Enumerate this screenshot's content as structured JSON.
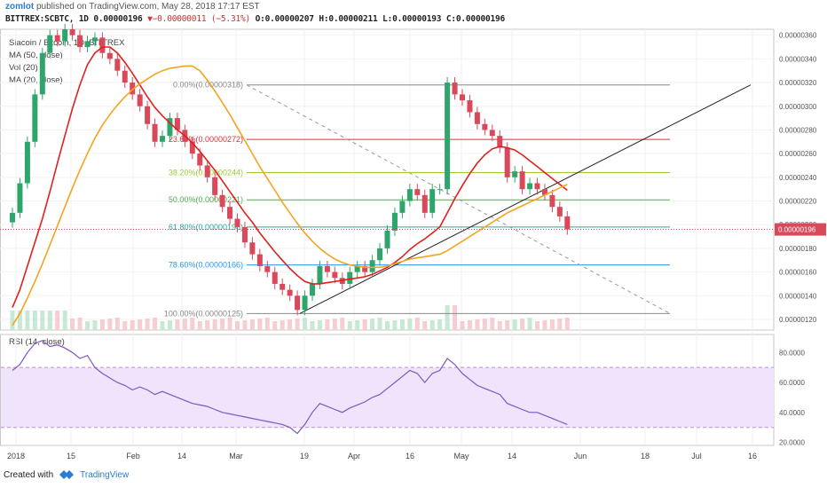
{
  "header": {
    "user": "zomlot",
    "published": "published on TradingView.com, May 28, 2018 17:17 EST",
    "symbol": "BITTREX:SCBTC, 1D",
    "price": "0.00000196",
    "change_arrow": "▼",
    "change": "−0.00000011 (−5.31%)",
    "ohlc": "O:0.00000207 H:0.00000211 L:0.00000193 C:0.00000196"
  },
  "legends": {
    "title": "Siacoin / Bitcoin, 1D, BITTREX",
    "ma50": "MA (50, close)",
    "vol": "Vol (20)",
    "ma20": "MA (20, close)",
    "rsi": "RSI (14, close)"
  },
  "footer": {
    "created_with": "Created with",
    "brand": "TradingView"
  },
  "colors": {
    "up": "#2ea66b",
    "down": "#d9495a",
    "ma20": "#e0201c",
    "ma50": "#f2a51e",
    "rsi": "#7e57c2",
    "rsi_band": "#efe4fb"
  },
  "chart_data": [
    {
      "type": "candlestick",
      "title": "Siacoin / Bitcoin, 1D, BITTREX",
      "x_ticks": [
        "2018",
        "15",
        "Feb",
        "14",
        "Mar",
        "19",
        "Apr",
        "16",
        "May",
        "14",
        "Jun",
        "18",
        "Jul",
        "16"
      ],
      "y_ticks": [
        "0.00000360",
        "0.00000340",
        "0.00000320",
        "0.00000300",
        "0.00000280",
        "0.00000260",
        "0.00000240",
        "0.00000220",
        "0.00000200",
        "0.00000180",
        "0.00000160",
        "0.00000140",
        "0.00000120"
      ],
      "ylim": [
        1.11e-06,
        3.65e-06
      ],
      "last_price_label": "0.00000196",
      "x": [
        "Jan 1",
        "Jan 3",
        "Jan 5",
        "Jan 7",
        "Jan 9",
        "Jan 11",
        "Jan 13",
        "Jan 15",
        "Jan 17",
        "Jan 19",
        "Jan 21",
        "Jan 23",
        "Jan 25",
        "Jan 27",
        "Jan 29",
        "Jan 31",
        "Feb 2",
        "Feb 4",
        "Feb 6",
        "Feb 8",
        "Feb 10",
        "Feb 12",
        "Feb 14",
        "Feb 16",
        "Feb 18",
        "Feb 20",
        "Feb 22",
        "Feb 24",
        "Feb 26",
        "Feb 28",
        "Mar 2",
        "Mar 4",
        "Mar 6",
        "Mar 8",
        "Mar 10",
        "Mar 12",
        "Mar 14",
        "Mar 16",
        "Mar 18",
        "Mar 20",
        "Mar 22",
        "Mar 24",
        "Mar 26",
        "Mar 28",
        "Mar 30",
        "Apr 1",
        "Apr 3",
        "Apr 5",
        "Apr 7",
        "Apr 9",
        "Apr 11",
        "Apr 13",
        "Apr 15",
        "Apr 17",
        "Apr 19",
        "Apr 21",
        "Apr 23",
        "Apr 25",
        "Apr 27",
        "Apr 29",
        "May 1",
        "May 3",
        "May 5",
        "May 7",
        "May 9",
        "May 11",
        "May 13",
        "May 15",
        "May 17",
        "May 19",
        "May 21",
        "May 23",
        "May 25",
        "May 27",
        "May 28"
      ],
      "close": [
        2.1e-06,
        2.35e-06,
        2.7e-06,
        3.1e-06,
        3.45e-06,
        3.6e-06,
        3.55e-06,
        3.65e-06,
        3.6e-06,
        3.5e-06,
        3.55e-06,
        3.58e-06,
        3.45e-06,
        3.4e-06,
        3.3e-06,
        3.2e-06,
        3.1e-06,
        3e-06,
        2.85e-06,
        2.7e-06,
        2.75e-06,
        2.9e-06,
        2.8e-06,
        2.7e-06,
        2.6e-06,
        2.5e-06,
        2.4e-06,
        2.25e-06,
        2.15e-06,
        2.05e-06,
        1.98e-06,
        1.85e-06,
        1.75e-06,
        1.65e-06,
        1.6e-06,
        1.5e-06,
        1.45e-06,
        1.4e-06,
        1.28e-06,
        1.4e-06,
        1.5e-06,
        1.65e-06,
        1.6e-06,
        1.55e-06,
        1.5e-06,
        1.6e-06,
        1.65e-06,
        1.6e-06,
        1.7e-06,
        1.8e-06,
        1.95e-06,
        2.1e-06,
        2.2e-06,
        2.3e-06,
        2.25e-06,
        2.1e-06,
        2.3e-06,
        2.3e-06,
        3.2e-06,
        3.1e-06,
        3.05e-06,
        2.95e-06,
        2.85e-06,
        2.8e-06,
        2.75e-06,
        2.65e-06,
        2.4e-06,
        2.45e-06,
        2.3e-06,
        2.35e-06,
        2.3e-06,
        2.25e-06,
        2.15e-06,
        2.07e-06,
        1.96e-06
      ],
      "series": [
        {
          "name": "MA (20, close)",
          "values": [
            1.3e-06,
            1.45e-06,
            1.65e-06,
            1.85e-06,
            2.05e-06,
            2.28e-06,
            2.52e-06,
            2.75e-06,
            2.98e-06,
            3.18e-06,
            3.35e-06,
            3.45e-06,
            3.5e-06,
            3.5e-06,
            3.45e-06,
            3.37e-06,
            3.28e-06,
            3.18e-06,
            3.08e-06,
            2.99e-06,
            2.92e-06,
            2.86e-06,
            2.8e-06,
            2.75e-06,
            2.69e-06,
            2.62e-06,
            2.54e-06,
            2.46e-06,
            2.37e-06,
            2.28e-06,
            2.19e-06,
            2.1e-06,
            2.02e-06,
            1.93e-06,
            1.85e-06,
            1.77e-06,
            1.7e-06,
            1.63e-06,
            1.57e-06,
            1.52e-06,
            1.5e-06,
            1.5e-06,
            1.51e-06,
            1.52e-06,
            1.53e-06,
            1.54e-06,
            1.55e-06,
            1.56e-06,
            1.58e-06,
            1.61e-06,
            1.64e-06,
            1.68e-06,
            1.73e-06,
            1.79e-06,
            1.84e-06,
            1.88e-06,
            1.93e-06,
            1.98e-06,
            2.1e-06,
            2.22e-06,
            2.33e-06,
            2.43e-06,
            2.52e-06,
            2.59e-06,
            2.64e-06,
            2.66e-06,
            2.65e-06,
            2.63e-06,
            2.59e-06,
            2.54e-06,
            2.49e-06,
            2.44e-06,
            2.39e-06,
            2.34e-06,
            2.29e-06
          ]
        },
        {
          "name": "MA (50, close)",
          "values": [
            1.15e-06,
            1.25e-06,
            1.38e-06,
            1.52e-06,
            1.67e-06,
            1.83e-06,
            1.99e-06,
            2.15e-06,
            2.31e-06,
            2.46e-06,
            2.6e-06,
            2.73e-06,
            2.84e-06,
            2.93e-06,
            3.01e-06,
            3.08e-06,
            3.14e-06,
            3.19e-06,
            3.23e-06,
            3.27e-06,
            3.3e-06,
            3.32e-06,
            3.33e-06,
            3.34e-06,
            3.34e-06,
            3.3e-06,
            3.22e-06,
            3.13e-06,
            3.03e-06,
            2.93e-06,
            2.82e-06,
            2.71e-06,
            2.6e-06,
            2.49e-06,
            2.39e-06,
            2.29e-06,
            2.19e-06,
            2.1e-06,
            2.01e-06,
            1.93e-06,
            1.86e-06,
            1.8e-06,
            1.75e-06,
            1.71e-06,
            1.68e-06,
            1.66e-06,
            1.65e-06,
            1.64e-06,
            1.64e-06,
            1.64e-06,
            1.65e-06,
            1.67e-06,
            1.69e-06,
            1.71e-06,
            1.72e-06,
            1.73e-06,
            1.74e-06,
            1.75e-06,
            1.78e-06,
            1.82e-06,
            1.86e-06,
            1.9e-06,
            1.94e-06,
            1.98e-06,
            2.02e-06,
            2.06e-06,
            2.1e-06,
            2.13e-06,
            2.16e-06,
            2.19e-06,
            2.22e-06,
            2.25e-06,
            2.28e-06,
            2.31e-06,
            2.34e-06
          ]
        }
      ],
      "fibonacci": [
        {
          "label": "0.00%(0.00000318)",
          "value": 3.18e-06,
          "color": "#888888"
        },
        {
          "label": "23.60%(0.00000272)",
          "value": 2.72e-06,
          "color": "#d9303a"
        },
        {
          "label": "38.20%(0.00000244)",
          "value": 2.44e-06,
          "color": "#9acd32"
        },
        {
          "label": "50.00%(0.00000221)",
          "value": 2.21e-06,
          "color": "#4caf50"
        },
        {
          "label": "61.80%(0.00000198)",
          "value": 1.98e-06,
          "color": "#26a69a"
        },
        {
          "label": "78.60%(0.00000166)",
          "value": 1.66e-06,
          "color": "#2196f3"
        },
        {
          "label": "100.00%(0.00000125)",
          "value": 1.25e-06,
          "color": "#888888"
        }
      ]
    },
    {
      "type": "line",
      "title": "RSI (14, close)",
      "y_ticks": [
        "80.0000",
        "60.0000",
        "40.0000",
        "20.0000"
      ],
      "ylim": [
        18,
        92
      ],
      "bands": [
        30,
        70
      ],
      "series": [
        {
          "name": "RSI (14, close)",
          "values": [
            68,
            72,
            80,
            86,
            88,
            84,
            85,
            83,
            80,
            76,
            78,
            70,
            66,
            63,
            60,
            58,
            55,
            57,
            55,
            52,
            54,
            52,
            50,
            48,
            46,
            45,
            44,
            42,
            40,
            39,
            38,
            37,
            36,
            35,
            34,
            33,
            32,
            30,
            26,
            32,
            40,
            46,
            44,
            42,
            40,
            43,
            45,
            47,
            50,
            52,
            56,
            60,
            64,
            68,
            66,
            60,
            66,
            68,
            76,
            72,
            66,
            62,
            58,
            56,
            54,
            52,
            46,
            44,
            42,
            40,
            40,
            38,
            36,
            34,
            32
          ]
        }
      ]
    }
  ]
}
